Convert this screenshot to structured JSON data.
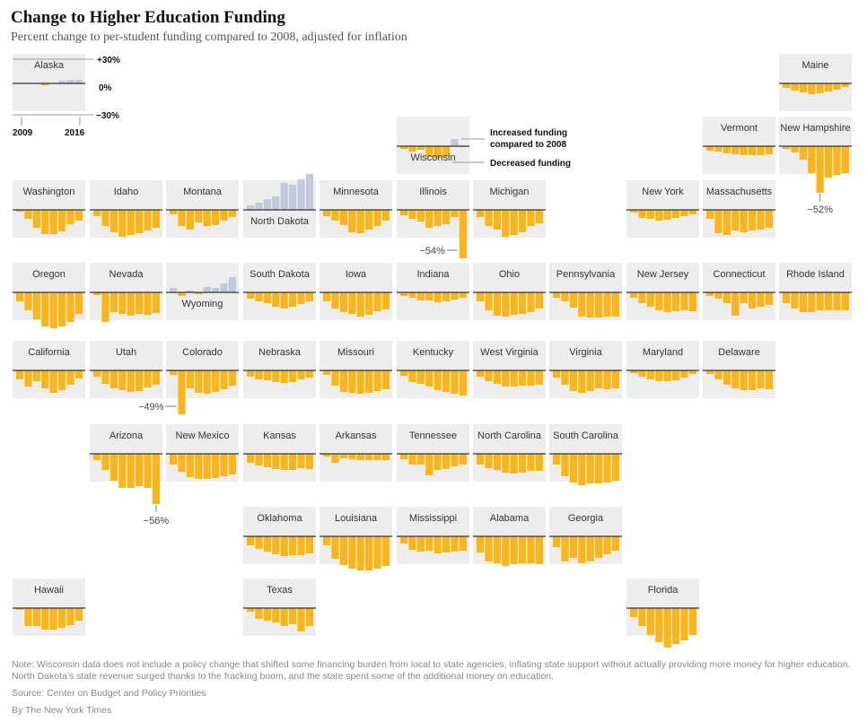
{
  "title": "Change to Higher Education Funding",
  "subtitle": "Percent change to per-student funding compared to 2008, adjusted for inflation",
  "legend": {
    "state": "Alaska",
    "y_top": "+30%",
    "y_mid": "0%",
    "y_bottom": "−30%",
    "x_start": "2009",
    "x_end": "2016",
    "increased_label_1": "Increased funding",
    "increased_label_2": "compared to 2008",
    "decreased_label": "Decreased funding"
  },
  "colors": {
    "decrease": "#f9b51a",
    "increase": "#c3c8dc",
    "tile": "#ededed"
  },
  "chart_data": {
    "type": "bar",
    "layout": "tile-grid-map",
    "x": [
      2009,
      2010,
      2011,
      2012,
      2013,
      2014,
      2015,
      2016
    ],
    "ylim": [
      -30,
      30
    ],
    "ylabel": "Percent change",
    "states": [
      {
        "name": "Alaska",
        "col": 0,
        "row": 0,
        "values": [
          0,
          0,
          0,
          -2,
          0,
          3,
          4,
          4
        ]
      },
      {
        "name": "Maine",
        "col": 10,
        "row": 0,
        "values": [
          -5,
          -8,
          -10,
          -12,
          -11,
          -9,
          -7,
          -4
        ]
      },
      {
        "name": "Wisconsin",
        "col": 5,
        "row": 1,
        "values": [
          -3,
          -6,
          -4,
          -12,
          -13,
          -12,
          8,
          -1
        ]
      },
      {
        "name": "Vermont",
        "col": 9,
        "row": 1,
        "values": [
          -5,
          -6,
          -8,
          -9,
          -10,
          -10,
          -10,
          -9
        ]
      },
      {
        "name": "New Hampshire",
        "col": 10,
        "row": 1,
        "values": [
          -3,
          -7,
          -15,
          -30,
          -52,
          -35,
          -32,
          -30
        ]
      },
      {
        "name": "Washington",
        "col": 0,
        "row": 2,
        "values": [
          -2,
          -10,
          -20,
          -27,
          -27,
          -24,
          -16,
          -12
        ]
      },
      {
        "name": "Idaho",
        "col": 1,
        "row": 2,
        "values": [
          -7,
          -18,
          -25,
          -30,
          -28,
          -26,
          -23,
          -20
        ]
      },
      {
        "name": "Montana",
        "col": 2,
        "row": 2,
        "values": [
          -5,
          -18,
          -22,
          -14,
          -18,
          -17,
          -12,
          -8
        ]
      },
      {
        "name": "North Dakota",
        "col": 3,
        "row": 2,
        "values": [
          5,
          8,
          12,
          15,
          30,
          28,
          34,
          40
        ]
      },
      {
        "name": "Minnesota",
        "col": 4,
        "row": 2,
        "values": [
          -7,
          -12,
          -17,
          -25,
          -26,
          -22,
          -18,
          -12
        ]
      },
      {
        "name": "Illinois",
        "col": 5,
        "row": 2,
        "values": [
          -6,
          -10,
          -13,
          -20,
          -18,
          -16,
          -8,
          -54
        ]
      },
      {
        "name": "Michigan",
        "col": 6,
        "row": 2,
        "values": [
          -8,
          -18,
          -22,
          -30,
          -28,
          -25,
          -18,
          -15
        ]
      },
      {
        "name": "New York",
        "col": 8,
        "row": 2,
        "values": [
          -3,
          -9,
          -10,
          -12,
          -11,
          -9,
          -7,
          -5
        ]
      },
      {
        "name": "Massachusetts",
        "col": 9,
        "row": 2,
        "values": [
          -10,
          -26,
          -28,
          -23,
          -25,
          -23,
          -22,
          -20
        ]
      },
      {
        "name": "Oregon",
        "col": 0,
        "row": 3,
        "values": [
          -10,
          -20,
          -30,
          -38,
          -40,
          -38,
          -33,
          -24
        ]
      },
      {
        "name": "Nevada",
        "col": 1,
        "row": 3,
        "values": [
          -3,
          -33,
          -22,
          -24,
          -26,
          -24,
          -25,
          -23
        ]
      },
      {
        "name": "Wyoming",
        "col": 2,
        "row": 3,
        "values": [
          5,
          -4,
          2,
          -2,
          6,
          5,
          10,
          17
        ]
      },
      {
        "name": "South Dakota",
        "col": 3,
        "row": 3,
        "values": [
          -7,
          -10,
          -12,
          -16,
          -18,
          -16,
          -13,
          -10
        ]
      },
      {
        "name": "Iowa",
        "col": 4,
        "row": 3,
        "values": [
          -10,
          -18,
          -22,
          -24,
          -27,
          -25,
          -21,
          -19
        ]
      },
      {
        "name": "Indiana",
        "col": 5,
        "row": 3,
        "values": [
          -4,
          -6,
          -9,
          -9,
          -11,
          -10,
          -8,
          -6
        ]
      },
      {
        "name": "Ohio",
        "col": 6,
        "row": 3,
        "values": [
          -10,
          -20,
          -26,
          -27,
          -25,
          -24,
          -22,
          -18
        ]
      },
      {
        "name": "Pennsylvania",
        "col": 7,
        "row": 3,
        "values": [
          -6,
          -10,
          -17,
          -27,
          -28,
          -28,
          -27,
          -27
        ]
      },
      {
        "name": "New Jersey",
        "col": 8,
        "row": 3,
        "values": [
          -6,
          -12,
          -16,
          -20,
          -22,
          -21,
          -20,
          -21
        ]
      },
      {
        "name": "Connecticut",
        "col": 9,
        "row": 3,
        "values": [
          -4,
          -7,
          -12,
          -26,
          -12,
          -18,
          -16,
          -14
        ]
      },
      {
        "name": "Rhode Island",
        "col": 10,
        "row": 3,
        "values": [
          -12,
          -18,
          -22,
          -22,
          -20,
          -20,
          -20,
          -20
        ]
      },
      {
        "name": "California",
        "col": 0,
        "row": 4,
        "values": [
          -10,
          -18,
          -12,
          -20,
          -25,
          -22,
          -16,
          -9
        ]
      },
      {
        "name": "Utah",
        "col": 1,
        "row": 4,
        "values": [
          -7,
          -15,
          -20,
          -22,
          -24,
          -23,
          -19,
          -16
        ]
      },
      {
        "name": "Colorado",
        "col": 2,
        "row": 4,
        "values": [
          -5,
          -49,
          -20,
          -25,
          -26,
          -24,
          -21,
          -17
        ]
      },
      {
        "name": "Nebraska",
        "col": 3,
        "row": 4,
        "values": [
          -7,
          -10,
          -11,
          -13,
          -14,
          -13,
          -10,
          -8
        ]
      },
      {
        "name": "Missouri",
        "col": 4,
        "row": 4,
        "values": [
          -5,
          -17,
          -24,
          -25,
          -26,
          -25,
          -23,
          -21
        ]
      },
      {
        "name": "Kentucky",
        "col": 5,
        "row": 4,
        "values": [
          -6,
          -13,
          -15,
          -18,
          -22,
          -24,
          -26,
          -28
        ]
      },
      {
        "name": "West Virginia",
        "col": 6,
        "row": 4,
        "values": [
          -7,
          -12,
          -15,
          -18,
          -18,
          -17,
          -17,
          -16
        ]
      },
      {
        "name": "Virginia",
        "col": 7,
        "row": 4,
        "values": [
          -8,
          -16,
          -23,
          -25,
          -23,
          -20,
          -21,
          -20
        ]
      },
      {
        "name": "Maryland",
        "col": 8,
        "row": 4,
        "values": [
          -3,
          -7,
          -10,
          -12,
          -12,
          -11,
          -8,
          -4
        ]
      },
      {
        "name": "Delaware",
        "col": 9,
        "row": 4,
        "values": [
          -4,
          -10,
          -16,
          -20,
          -22,
          -22,
          -20,
          -21
        ]
      },
      {
        "name": "Arizona",
        "col": 1,
        "row": 5,
        "values": [
          -7,
          -18,
          -30,
          -38,
          -38,
          -36,
          -38,
          -56
        ]
      },
      {
        "name": "New Mexico",
        "col": 2,
        "row": 5,
        "values": [
          -12,
          -20,
          -26,
          -28,
          -28,
          -27,
          -25,
          -23
        ]
      },
      {
        "name": "Kansas",
        "col": 3,
        "row": 5,
        "values": [
          -10,
          -13,
          -15,
          -17,
          -18,
          -18,
          -16,
          -17
        ]
      },
      {
        "name": "Arkansas",
        "col": 4,
        "row": 5,
        "values": [
          -3,
          -10,
          -5,
          -6,
          -7,
          -7,
          -7,
          -7
        ]
      },
      {
        "name": "Tennessee",
        "col": 5,
        "row": 5,
        "values": [
          -6,
          -12,
          -12,
          -24,
          -18,
          -17,
          -14,
          -12
        ]
      },
      {
        "name": "North Carolina",
        "col": 6,
        "row": 5,
        "values": [
          -12,
          -16,
          -18,
          -21,
          -22,
          -21,
          -19,
          -19
        ]
      },
      {
        "name": "South Carolina",
        "col": 7,
        "row": 5,
        "values": [
          -12,
          -25,
          -32,
          -35,
          -33,
          -33,
          -32,
          -30
        ]
      },
      {
        "name": "Oklahoma",
        "col": 3,
        "row": 6,
        "values": [
          -10,
          -14,
          -17,
          -20,
          -22,
          -21,
          -21,
          -19
        ]
      },
      {
        "name": "Louisiana",
        "col": 4,
        "row": 6,
        "values": [
          -10,
          -25,
          -32,
          -36,
          -38,
          -38,
          -36,
          -33
        ]
      },
      {
        "name": "Mississippi",
        "col": 5,
        "row": 6,
        "values": [
          -8,
          -15,
          -17,
          -16,
          -19,
          -18,
          -17,
          -16
        ]
      },
      {
        "name": "Alabama",
        "col": 6,
        "row": 6,
        "values": [
          -18,
          -28,
          -30,
          -33,
          -31,
          -30,
          -30,
          -31
        ]
      },
      {
        "name": "Georgia",
        "col": 7,
        "row": 6,
        "values": [
          -12,
          -28,
          -24,
          -30,
          -28,
          -24,
          -20,
          -16
        ]
      },
      {
        "name": "Hawaii",
        "col": 0,
        "row": 7,
        "values": [
          -2,
          -20,
          -20,
          -24,
          -24,
          -22,
          -19,
          -14
        ]
      },
      {
        "name": "Texas",
        "col": 3,
        "row": 7,
        "values": [
          -4,
          -12,
          -14,
          -16,
          -20,
          -18,
          -26,
          -20
        ]
      },
      {
        "name": "Florida",
        "col": 8,
        "row": 7,
        "values": [
          -10,
          -20,
          -30,
          -38,
          -44,
          -40,
          -36,
          -30
        ]
      }
    ],
    "callouts": [
      {
        "state": "Illinois",
        "label": "−54%"
      },
      {
        "state": "New Hampshire",
        "label": "−52%"
      },
      {
        "state": "Colorado",
        "label": "−49%"
      },
      {
        "state": "Arizona",
        "label": "−56%"
      }
    ]
  },
  "footer": {
    "note_1": "Note: Wisconsin data does not include a policy change that shifted some financing burden from local to state agencies, inflating state support without actually providing more money for higher education.",
    "note_2": "North Dakota’s state revenue surged thanks to the fracking boom, and the state spent some of the additional money on education.",
    "source": "Source: Center on Budget and Policy Priorities",
    "credit": "By The New York Times"
  }
}
